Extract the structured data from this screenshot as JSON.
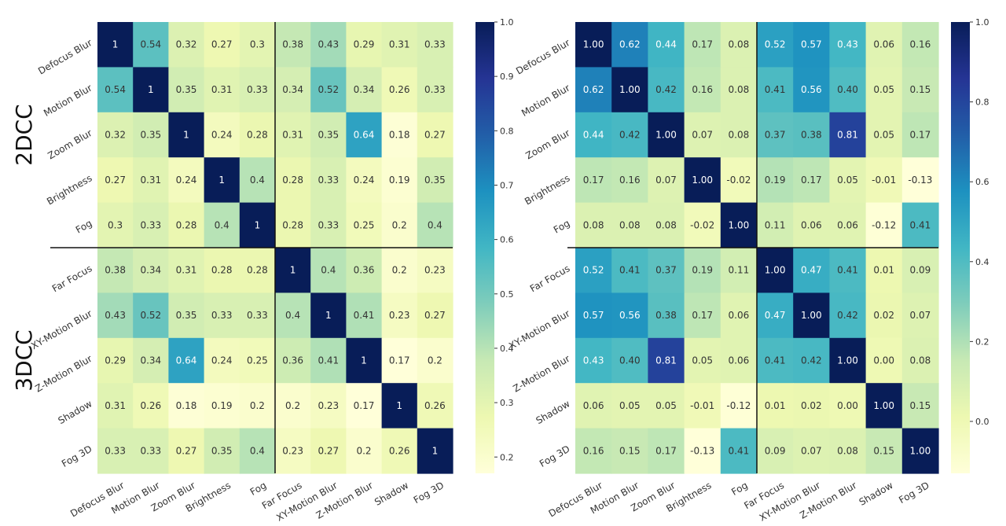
{
  "chart_data": [
    {
      "type": "heatmap",
      "title": "",
      "row_group_labels": [
        "2DCC",
        "3DCC"
      ],
      "labels": [
        "Defocus Blur",
        "Motion Blur",
        "Zoom Blur",
        "Brightness",
        "Fog",
        "Far Focus",
        "XY-Motion Blur",
        "Z-Motion Blur",
        "Shadow",
        "Fog 3D"
      ],
      "value_decimals": 0,
      "matrix": [
        [
          1,
          0.54,
          0.32,
          0.27,
          0.3,
          0.38,
          0.43,
          0.29,
          0.31,
          0.33
        ],
        [
          0.54,
          1,
          0.35,
          0.31,
          0.33,
          0.34,
          0.52,
          0.34,
          0.26,
          0.33
        ],
        [
          0.32,
          0.35,
          1,
          0.24,
          0.28,
          0.31,
          0.35,
          0.64,
          0.18,
          0.27
        ],
        [
          0.27,
          0.31,
          0.24,
          1,
          0.4,
          0.28,
          0.33,
          0.24,
          0.19,
          0.35
        ],
        [
          0.3,
          0.33,
          0.28,
          0.4,
          1,
          0.28,
          0.33,
          0.25,
          0.2,
          0.4
        ],
        [
          0.38,
          0.34,
          0.31,
          0.28,
          0.28,
          1,
          0.4,
          0.36,
          0.2,
          0.23
        ],
        [
          0.43,
          0.52,
          0.35,
          0.33,
          0.33,
          0.4,
          1,
          0.41,
          0.23,
          0.27
        ],
        [
          0.29,
          0.34,
          0.64,
          0.24,
          0.25,
          0.36,
          0.41,
          1,
          0.17,
          0.2
        ],
        [
          0.31,
          0.26,
          0.18,
          0.19,
          0.2,
          0.2,
          0.23,
          0.17,
          1,
          0.26
        ],
        [
          0.33,
          0.33,
          0.27,
          0.35,
          0.4,
          0.23,
          0.27,
          0.2,
          0.26,
          1
        ]
      ],
      "colorbar": {
        "min": 0.17,
        "max": 1.0,
        "ticks": [
          0.2,
          0.3,
          0.4,
          0.5,
          0.6,
          0.7,
          0.8,
          0.9,
          1.0
        ],
        "tick_labels": [
          "0.2",
          "0.3",
          "0.4",
          "0.5",
          "0.6",
          "0.7",
          "0.8",
          "0.9",
          "1.0"
        ]
      }
    },
    {
      "type": "heatmap",
      "title": "",
      "labels": [
        "Defocus Blur",
        "Motion Blur",
        "Zoom Blur",
        "Brightness",
        "Fog",
        "Far Focus",
        "XY-Motion Blur",
        "Z-Motion Blur",
        "Shadow",
        "Fog 3D"
      ],
      "value_decimals": 2,
      "matrix": [
        [
          1.0,
          0.62,
          0.44,
          0.17,
          0.08,
          0.52,
          0.57,
          0.43,
          0.06,
          0.16
        ],
        [
          0.62,
          1.0,
          0.42,
          0.16,
          0.08,
          0.41,
          0.56,
          0.4,
          0.05,
          0.15
        ],
        [
          0.44,
          0.42,
          1.0,
          0.07,
          0.08,
          0.37,
          0.38,
          0.81,
          0.05,
          0.17
        ],
        [
          0.17,
          0.16,
          0.07,
          1.0,
          -0.02,
          0.19,
          0.17,
          0.05,
          -0.01,
          -0.13
        ],
        [
          0.08,
          0.08,
          0.08,
          -0.02,
          1.0,
          0.11,
          0.06,
          0.06,
          -0.12,
          0.41
        ],
        [
          0.52,
          0.41,
          0.37,
          0.19,
          0.11,
          1.0,
          0.47,
          0.41,
          0.01,
          0.09
        ],
        [
          0.57,
          0.56,
          0.38,
          0.17,
          0.06,
          0.47,
          1.0,
          0.42,
          0.02,
          0.07
        ],
        [
          0.43,
          0.4,
          0.81,
          0.05,
          0.06,
          0.41,
          0.42,
          1.0,
          -0.0,
          0.08
        ],
        [
          0.06,
          0.05,
          0.05,
          -0.01,
          -0.12,
          0.01,
          0.02,
          -0.0,
          1.0,
          0.15
        ],
        [
          0.16,
          0.15,
          0.17,
          -0.13,
          0.41,
          0.09,
          0.07,
          0.08,
          0.15,
          1.0
        ]
      ],
      "colorbar": {
        "min": -0.13,
        "max": 1.0,
        "ticks": [
          0.0,
          0.2,
          0.4,
          0.6,
          0.8,
          1.0
        ],
        "tick_labels": [
          "0.0",
          "0.2",
          "0.4",
          "0.6",
          "0.8",
          "1.0"
        ]
      }
    }
  ]
}
